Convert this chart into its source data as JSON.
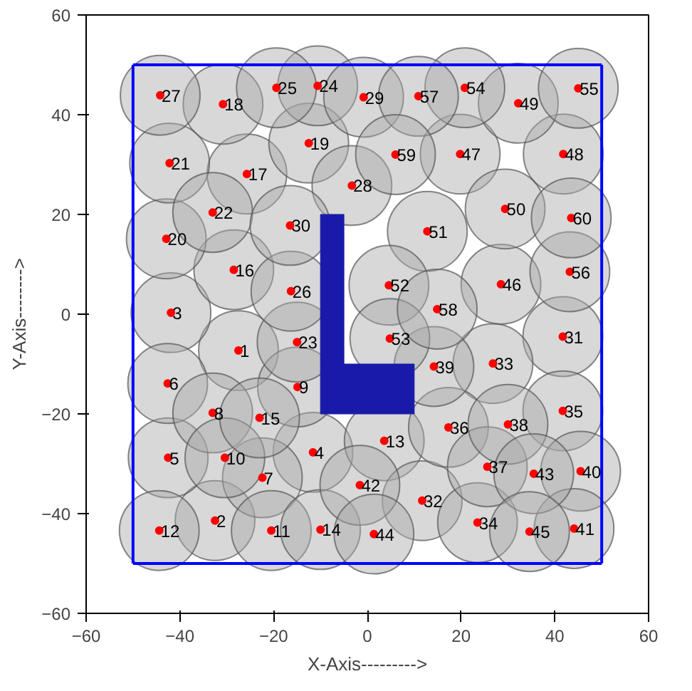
{
  "chart_data": {
    "type": "bubble",
    "xlabel": "X-Axis--------->",
    "ylabel": "Y-Axis-------->",
    "xlim": [
      -60,
      60
    ],
    "ylim": [
      -60,
      60
    ],
    "xticks": [
      -60,
      -40,
      -20,
      0,
      20,
      40,
      60
    ],
    "yticks": [
      -60,
      -40,
      -20,
      0,
      20,
      40,
      60
    ],
    "grid": false,
    "series": [
      {
        "color": "#a8a8a8",
        "x": [
          -27.5,
          -32.5,
          -41.9,
          -11.6,
          -42.5,
          -42.6,
          -22.4,
          -33.0,
          -14.9,
          -30.4,
          -20.5,
          -44.4,
          3.6,
          -10.0,
          -23.0,
          -28.5,
          -25.7,
          -30.8,
          -12.5,
          -42.9,
          -42.2,
          -33.0,
          -15.0,
          -10.6,
          -19.4,
          -16.3,
          -44.2,
          -3.3,
          -0.8,
          -16.5,
          41.7,
          11.7,
          26.8,
          23.5,
          41.7,
          17.3,
          25.6,
          30.0,
          14.2,
          45.5,
          44.1,
          -1.6,
          35.5,
          1.4,
          34.6,
          28.5,
          19.8,
          41.8,
          32.2,
          29.4,
          12.8,
          4.6,
          4.8,
          20.8,
          45.0,
          43.2,
          10.9,
          14.9,
          6.0,
          43.5
        ],
        "values": [
          -7.3,
          -41.4,
          0.3,
          -27.7,
          -28.8,
          -13.9,
          -32.8,
          -19.8,
          -14.6,
          -28.8,
          -43.4,
          -43.4,
          -25.4,
          -43.2,
          -20.8,
          8.9,
          28.1,
          42.1,
          34.3,
          15.1,
          30.3,
          20.4,
          -5.6,
          45.8,
          45.4,
          4.6,
          43.9,
          25.8,
          43.5,
          17.8,
          -4.5,
          -37.4,
          -9.9,
          -41.8,
          -19.4,
          -22.7,
          -30.6,
          -22.1,
          -10.5,
          -31.5,
          -43.0,
          -34.3,
          -32.0,
          -44.1,
          -43.6,
          6.0,
          32.1,
          32.1,
          42.3,
          21.1,
          16.6,
          5.8,
          -4.9,
          45.4,
          45.3,
          8.5,
          43.7,
          1.0,
          32.0,
          19.3
        ],
        "sizes": [
          1,
          1,
          1,
          1,
          1,
          1,
          1,
          1,
          1,
          1,
          1,
          1,
          1,
          1,
          1,
          1,
          1,
          1,
          1,
          1,
          1,
          1,
          1,
          1,
          1,
          1,
          1,
          1,
          1,
          1,
          1,
          1,
          1,
          1,
          1,
          1,
          1,
          1,
          1,
          1,
          1,
          1,
          1,
          1,
          1,
          1,
          1,
          1,
          1,
          1,
          1,
          1,
          1,
          1,
          1,
          1,
          1,
          1,
          1,
          1
        ]
      },
      {
        "type": "scatter",
        "color": "#ff0000",
        "marker": "circle",
        "x": [
          -27.5,
          -32.5,
          -41.9,
          -11.6,
          -42.5,
          -42.6,
          -22.4,
          -33.0,
          -14.9,
          -30.4,
          -20.5,
          -44.4,
          3.6,
          -10.0,
          -23.0,
          -28.5,
          -25.7,
          -30.8,
          -12.5,
          -42.9,
          -42.2,
          -33.0,
          -15.0,
          -10.6,
          -19.4,
          -16.3,
          -44.2,
          -3.3,
          -0.8,
          -16.5,
          41.7,
          11.7,
          26.8,
          23.5,
          41.7,
          17.3,
          25.6,
          30.0,
          14.2,
          45.5,
          44.1,
          -1.6,
          35.5,
          1.4,
          34.6,
          28.5,
          19.8,
          41.8,
          32.2,
          29.4,
          12.8,
          4.6,
          4.8,
          20.8,
          45.0,
          43.2,
          10.9,
          14.9,
          6.0,
          43.5
        ],
        "values": [
          -7.3,
          -41.4,
          0.3,
          -27.7,
          -28.8,
          -13.9,
          -32.8,
          -19.8,
          -14.6,
          -28.8,
          -43.4,
          -43.4,
          -25.4,
          -43.2,
          -20.8,
          8.9,
          28.1,
          42.1,
          34.3,
          15.1,
          30.3,
          20.4,
          -5.6,
          45.8,
          45.4,
          4.6,
          43.9,
          25.8,
          43.5,
          17.8,
          -4.5,
          -37.4,
          -9.9,
          -41.8,
          -19.4,
          -22.7,
          -30.6,
          -22.1,
          -10.5,
          -31.5,
          -43.0,
          -34.3,
          -32.0,
          -44.1,
          -43.6,
          6.0,
          32.1,
          32.1,
          42.3,
          21.1,
          16.6,
          5.8,
          -4.9,
          45.4,
          45.3,
          8.5,
          43.7,
          1.0,
          32.0,
          19.3
        ]
      },
      {
        "type": "line",
        "color": "#0000ff",
        "x": [
          -50,
          50
        ],
        "values": [
          50,
          50
        ]
      },
      {
        "type": "line",
        "color": "#0000ff",
        "x": [
          -50,
          50
        ],
        "values": [
          -50,
          -50
        ]
      },
      {
        "type": "line",
        "color": "#0000ff",
        "x": [
          -50,
          -50
        ],
        "values": [
          -50,
          50
        ]
      },
      {
        "type": "line",
        "color": "#0000ff",
        "x": [
          50,
          50
        ],
        "values": [
          -50,
          50
        ]
      },
      {
        "type": "bar",
        "color": "#1a1aaa",
        "x": [
          -7.5,
          -2.5,
          2.5,
          7.5
        ],
        "values": [
          40,
          10,
          10,
          10
        ],
        "base": [
          -20,
          -20,
          -20,
          -20
        ]
      }
    ],
    "annotations": [
      {
        "text": "1",
        "x": -27.5,
        "y": -7.3
      },
      {
        "text": "2",
        "x": -32.5,
        "y": -41.4
      },
      {
        "text": "3",
        "x": -41.9,
        "y": 0.3
      },
      {
        "text": "4",
        "x": -11.6,
        "y": -27.7
      },
      {
        "text": "5",
        "x": -42.5,
        "y": -28.8
      },
      {
        "text": "6",
        "x": -42.6,
        "y": -13.9
      },
      {
        "text": "7",
        "x": -22.4,
        "y": -32.8
      },
      {
        "text": "8",
        "x": -33.0,
        "y": -19.8
      },
      {
        "text": "9",
        "x": -14.9,
        "y": -14.6
      },
      {
        "text": "10",
        "x": -30.4,
        "y": -28.8
      },
      {
        "text": "11",
        "x": -20.5,
        "y": -43.4
      },
      {
        "text": "12",
        "x": -44.4,
        "y": -43.4
      },
      {
        "text": "13",
        "x": 3.6,
        "y": -25.4
      },
      {
        "text": "14",
        "x": -10.0,
        "y": -43.2
      },
      {
        "text": "15",
        "x": -23.0,
        "y": -20.8
      },
      {
        "text": "16",
        "x": -28.5,
        "y": 8.9
      },
      {
        "text": "17",
        "x": -25.7,
        "y": 28.1
      },
      {
        "text": "18",
        "x": -30.8,
        "y": 42.1
      },
      {
        "text": "19",
        "x": -12.5,
        "y": 34.3
      },
      {
        "text": "20",
        "x": -42.9,
        "y": 15.1
      },
      {
        "text": "21",
        "x": -42.2,
        "y": 30.3
      },
      {
        "text": "22",
        "x": -33.0,
        "y": 20.4
      },
      {
        "text": "23",
        "x": -15.0,
        "y": -5.6
      },
      {
        "text": "24",
        "x": -10.6,
        "y": 45.8
      },
      {
        "text": "25",
        "x": -19.4,
        "y": 45.4
      },
      {
        "text": "26",
        "x": -16.3,
        "y": 4.6
      },
      {
        "text": "27",
        "x": -44.2,
        "y": 43.9
      },
      {
        "text": "28",
        "x": -3.3,
        "y": 25.8
      },
      {
        "text": "29",
        "x": -0.8,
        "y": 43.5
      },
      {
        "text": "30",
        "x": -16.5,
        "y": 17.8
      },
      {
        "text": "31",
        "x": 41.7,
        "y": -4.5
      },
      {
        "text": "32",
        "x": 11.7,
        "y": -37.4
      },
      {
        "text": "33",
        "x": 26.8,
        "y": -9.9
      },
      {
        "text": "34",
        "x": 23.5,
        "y": -41.8
      },
      {
        "text": "35",
        "x": 41.7,
        "y": -19.4
      },
      {
        "text": "36",
        "x": 17.3,
        "y": -22.7
      },
      {
        "text": "37",
        "x": 25.6,
        "y": -30.6
      },
      {
        "text": "38",
        "x": 30.0,
        "y": -22.1
      },
      {
        "text": "39",
        "x": 14.2,
        "y": -10.5
      },
      {
        "text": "40",
        "x": 45.5,
        "y": -31.5
      },
      {
        "text": "41",
        "x": 44.1,
        "y": -43.0
      },
      {
        "text": "42",
        "x": -1.6,
        "y": -34.3
      },
      {
        "text": "43",
        "x": 35.5,
        "y": -32.0
      },
      {
        "text": "44",
        "x": 1.4,
        "y": -44.1
      },
      {
        "text": "45",
        "x": 34.6,
        "y": -43.6
      },
      {
        "text": "46",
        "x": 28.5,
        "y": 6.0
      },
      {
        "text": "47",
        "x": 19.8,
        "y": 32.1
      },
      {
        "text": "48",
        "x": 41.8,
        "y": 32.1
      },
      {
        "text": "49",
        "x": 32.2,
        "y": 42.3
      },
      {
        "text": "50",
        "x": 29.4,
        "y": 21.1
      },
      {
        "text": "51",
        "x": 12.8,
        "y": 16.6
      },
      {
        "text": "52",
        "x": 4.6,
        "y": 5.8
      },
      {
        "text": "53",
        "x": 4.8,
        "y": -4.9
      },
      {
        "text": "54",
        "x": 20.8,
        "y": 45.4
      },
      {
        "text": "55",
        "x": 45.0,
        "y": 45.3
      },
      {
        "text": "56",
        "x": 43.2,
        "y": 8.5
      },
      {
        "text": "57",
        "x": 10.9,
        "y": 43.7
      },
      {
        "text": "58",
        "x": 14.9,
        "y": 1.0
      },
      {
        "text": "59",
        "x": 6.0,
        "y": 32.0
      },
      {
        "text": "60",
        "x": 43.5,
        "y": 19.3
      }
    ]
  }
}
